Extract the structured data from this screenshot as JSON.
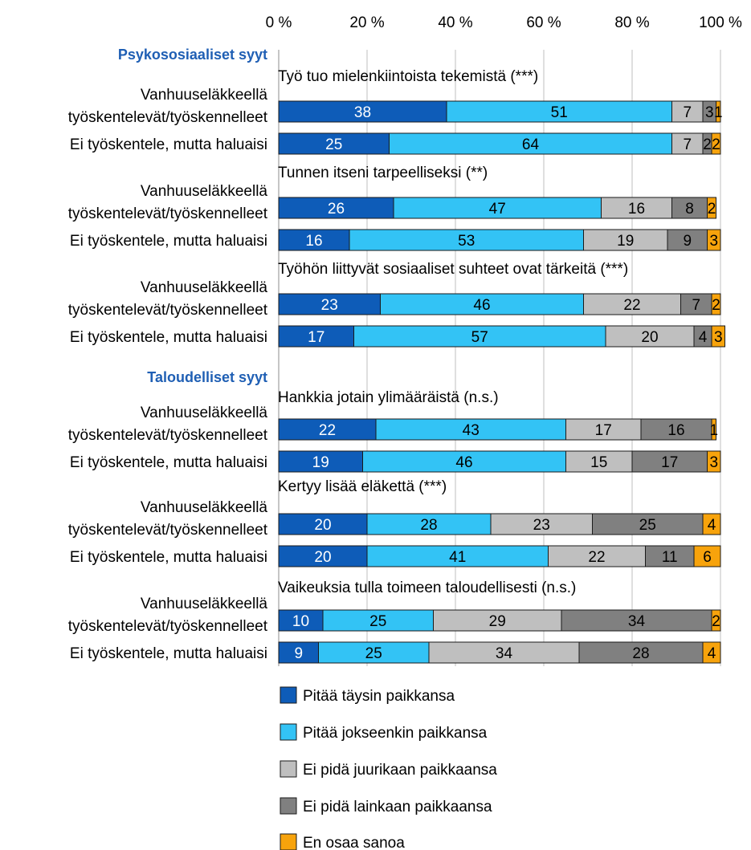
{
  "chart_data": {
    "type": "bar",
    "orientation": "horizontal",
    "stacked": true,
    "xlim": [
      0,
      100
    ],
    "x_ticks": [
      "0 %",
      "20 %",
      "40 %",
      "60 %",
      "80 %",
      "100 %"
    ],
    "x_tick_values": [
      0,
      20,
      40,
      60,
      80,
      100
    ],
    "grid": true,
    "legend_position": "bottom",
    "series": [
      {
        "name": "Pitää täysin paikkansa",
        "color": "#0e5cb8"
      },
      {
        "name": "Pitää jokseenkin paikkansa",
        "color": "#33c3f5"
      },
      {
        "name": "Ei pidä juurikaan paikkaansa",
        "color": "#bfbfbf"
      },
      {
        "name": "Ei pidä lainkaan paikkaansa",
        "color": "#808080"
      },
      {
        "name": "En osaa sanoa",
        "color": "#f7a30c"
      }
    ],
    "sections": [
      {
        "title": "Psykososiaaliset syyt",
        "items": [
          {
            "question": "Työ tuo mielenkiintoista tekemistä (***)",
            "rows": [
              {
                "label": [
                  "Vanhuuseläkkeellä",
                  "työskentelevät/työskennelleet"
                ],
                "values": [
                  38,
                  51,
                  7,
                  3,
                  1
                ]
              },
              {
                "label": [
                  "Ei työskentele, mutta haluaisi"
                ],
                "values": [
                  25,
                  64,
                  7,
                  2,
                  2
                ]
              }
            ]
          },
          {
            "question": "Tunnen itseni tarpeelliseksi (**)",
            "rows": [
              {
                "label": [
                  "Vanhuuseläkkeellä",
                  "työskentelevät/työskennelleet"
                ],
                "values": [
                  26,
                  47,
                  16,
                  8,
                  2
                ]
              },
              {
                "label": [
                  "Ei työskentele, mutta haluaisi"
                ],
                "values": [
                  16,
                  53,
                  19,
                  9,
                  3
                ]
              }
            ]
          },
          {
            "question": "Työhön liittyvät sosiaaliset suhteet ovat tärkeitä (***)",
            "rows": [
              {
                "label": [
                  "Vanhuuseläkkeellä",
                  "työskentelevät/työskennelleet"
                ],
                "values": [
                  23,
                  46,
                  22,
                  7,
                  2
                ]
              },
              {
                "label": [
                  "Ei työskentele, mutta haluaisi"
                ],
                "values": [
                  17,
                  57,
                  20,
                  4,
                  3
                ]
              }
            ]
          }
        ]
      },
      {
        "title": "Taloudelliset syyt",
        "items": [
          {
            "question": "Hankkia jotain ylimääräistä (n.s.)",
            "rows": [
              {
                "label": [
                  "Vanhuuseläkkeellä",
                  "työskentelevät/työskennelleet"
                ],
                "values": [
                  22,
                  43,
                  17,
                  16,
                  1
                ]
              },
              {
                "label": [
                  "Ei työskentele, mutta haluaisi"
                ],
                "values": [
                  19,
                  46,
                  15,
                  17,
                  3
                ]
              }
            ]
          },
          {
            "question": "Kertyy lisää eläkettä (***)",
            "rows": [
              {
                "label": [
                  "Vanhuuseläkkeellä",
                  "työskentelevät/työskennelleet"
                ],
                "values": [
                  20,
                  28,
                  23,
                  25,
                  4
                ]
              },
              {
                "label": [
                  "Ei työskentele, mutta haluaisi"
                ],
                "values": [
                  20,
                  41,
                  22,
                  11,
                  6
                ]
              }
            ]
          },
          {
            "question": "Vaikeuksia tulla toimeen taloudellisesti (n.s.)",
            "rows": [
              {
                "label": [
                  "Vanhuuseläkkeellä",
                  "työskentelevät/työskennelleet"
                ],
                "values": [
                  10,
                  25,
                  29,
                  34,
                  2
                ]
              },
              {
                "label": [
                  "Ei työskentele, mutta haluaisi"
                ],
                "values": [
                  9,
                  25,
                  34,
                  28,
                  4
                ]
              }
            ]
          }
        ]
      }
    ]
  }
}
